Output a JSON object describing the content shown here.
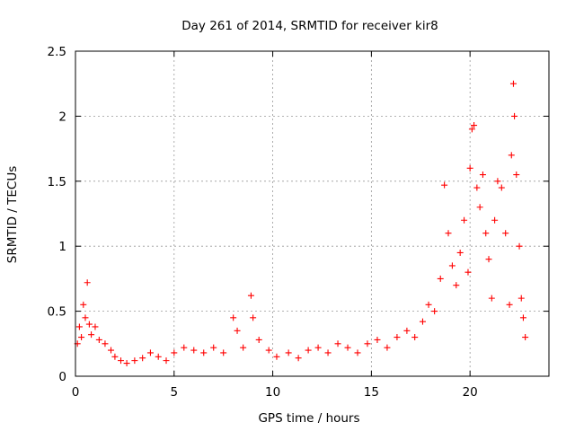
{
  "chart_data": {
    "type": "scatter",
    "title": "Day 261 of 2014, SRMTID for receiver kir8",
    "xlabel": "GPS time / hours",
    "ylabel": "SRMTID / TECUs",
    "xlim": [
      0,
      24
    ],
    "ylim": [
      0,
      2.5
    ],
    "x_ticks": [
      0,
      5,
      10,
      15,
      20
    ],
    "x_tick_labels": [
      "0",
      "5",
      "10",
      "15",
      "20"
    ],
    "y_ticks": [
      0,
      0.5,
      1,
      1.5,
      2,
      2.5
    ],
    "y_tick_labels": [
      "0",
      "0.5",
      "1",
      "1.5",
      "2",
      "2.5"
    ],
    "grid": true,
    "marker": "+",
    "marker_color": "#ff0000",
    "series": [
      {
        "name": "SRMTID",
        "points": [
          [
            0.1,
            0.25
          ],
          [
            0.2,
            0.38
          ],
          [
            0.3,
            0.3
          ],
          [
            0.4,
            0.55
          ],
          [
            0.5,
            0.45
          ],
          [
            0.6,
            0.72
          ],
          [
            0.7,
            0.4
          ],
          [
            0.8,
            0.32
          ],
          [
            1.0,
            0.38
          ],
          [
            1.2,
            0.28
          ],
          [
            1.5,
            0.25
          ],
          [
            1.8,
            0.2
          ],
          [
            2.0,
            0.15
          ],
          [
            2.3,
            0.12
          ],
          [
            2.6,
            0.1
          ],
          [
            3.0,
            0.12
          ],
          [
            3.4,
            0.14
          ],
          [
            3.8,
            0.18
          ],
          [
            4.2,
            0.15
          ],
          [
            4.6,
            0.12
          ],
          [
            5.0,
            0.18
          ],
          [
            5.5,
            0.22
          ],
          [
            6.0,
            0.2
          ],
          [
            6.5,
            0.18
          ],
          [
            7.0,
            0.22
          ],
          [
            7.5,
            0.18
          ],
          [
            8.0,
            0.45
          ],
          [
            8.2,
            0.35
          ],
          [
            8.5,
            0.22
          ],
          [
            8.9,
            0.62
          ],
          [
            9.0,
            0.45
          ],
          [
            9.3,
            0.28
          ],
          [
            9.8,
            0.2
          ],
          [
            10.2,
            0.15
          ],
          [
            10.8,
            0.18
          ],
          [
            11.3,
            0.14
          ],
          [
            11.8,
            0.2
          ],
          [
            12.3,
            0.22
          ],
          [
            12.8,
            0.18
          ],
          [
            13.3,
            0.25
          ],
          [
            13.8,
            0.22
          ],
          [
            14.3,
            0.18
          ],
          [
            14.8,
            0.25
          ],
          [
            15.3,
            0.28
          ],
          [
            15.8,
            0.22
          ],
          [
            16.3,
            0.3
          ],
          [
            16.8,
            0.35
          ],
          [
            17.2,
            0.3
          ],
          [
            17.6,
            0.42
          ],
          [
            17.9,
            0.55
          ],
          [
            18.2,
            0.5
          ],
          [
            18.5,
            0.75
          ],
          [
            18.7,
            1.47
          ],
          [
            18.9,
            1.1
          ],
          [
            19.1,
            0.85
          ],
          [
            19.3,
            0.7
          ],
          [
            19.5,
            0.95
          ],
          [
            19.7,
            1.2
          ],
          [
            19.9,
            0.8
          ],
          [
            20.0,
            1.6
          ],
          [
            20.1,
            1.9
          ],
          [
            20.2,
            1.93
          ],
          [
            20.35,
            1.45
          ],
          [
            20.5,
            1.3
          ],
          [
            20.65,
            1.55
          ],
          [
            20.8,
            1.1
          ],
          [
            20.95,
            0.9
          ],
          [
            21.1,
            0.6
          ],
          [
            21.25,
            1.2
          ],
          [
            21.4,
            1.5
          ],
          [
            21.6,
            1.45
          ],
          [
            21.8,
            1.1
          ],
          [
            22.0,
            0.55
          ],
          [
            22.1,
            1.7
          ],
          [
            22.2,
            2.25
          ],
          [
            22.25,
            2.0
          ],
          [
            22.35,
            1.55
          ],
          [
            22.5,
            1.0
          ],
          [
            22.6,
            0.6
          ],
          [
            22.7,
            0.45
          ],
          [
            22.8,
            0.3
          ]
        ]
      }
    ]
  }
}
